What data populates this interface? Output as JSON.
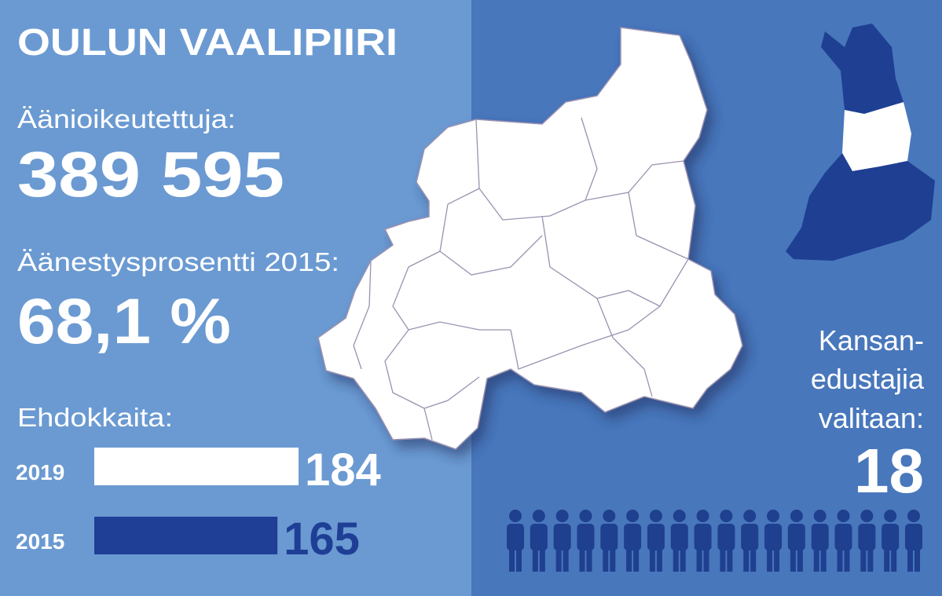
{
  "header": {
    "title": "OULUN VAALIPIIRI"
  },
  "eligible": {
    "label": "Äänioikeutettuja:",
    "value": "389 595"
  },
  "turnout": {
    "label": "Äänestysprosentti 2015:",
    "value": "68,1 %"
  },
  "candidates": {
    "label": "Ehdokkaita:",
    "bars": [
      {
        "year": "2019",
        "value": 184,
        "color": "#ffffff"
      },
      {
        "year": "2015",
        "value": 165,
        "color": "#1f3f96"
      }
    ]
  },
  "seats": {
    "label_lines": [
      "Kansan-",
      "edustajia",
      "valitaan:"
    ],
    "value": 18
  }
}
